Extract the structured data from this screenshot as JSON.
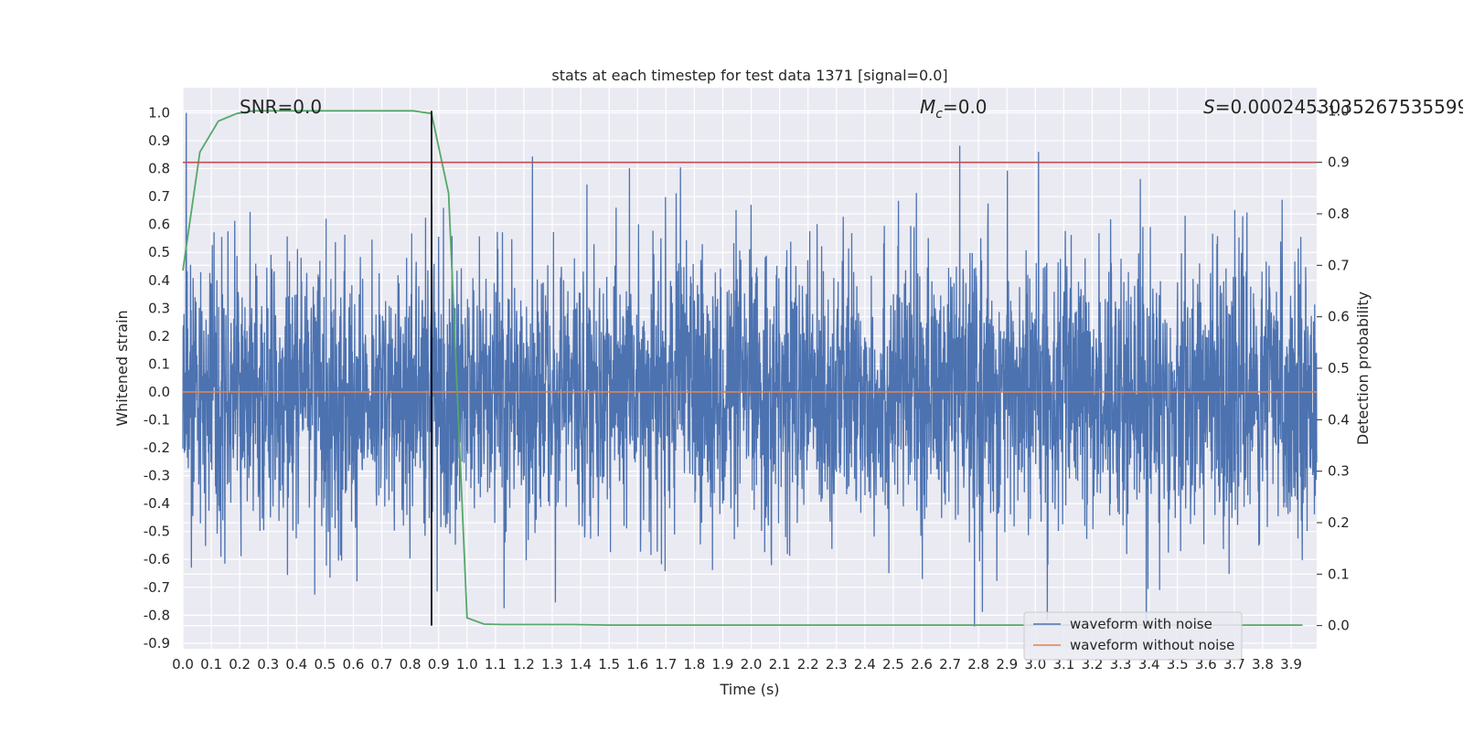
{
  "chart_data": {
    "type": "line",
    "title": "stats at each timestep for test data 1371 [signal=0.0]",
    "xlabel": "Time (s)",
    "ylabel": "Whitened strain",
    "y2label": "Detection probability",
    "xlim": [
      0.0,
      3.99
    ],
    "ylim": [
      -0.92,
      1.09
    ],
    "y2lim": [
      -0.045,
      1.045
    ],
    "x_ticks": [
      "0.0",
      "0.1",
      "0.2",
      "0.3",
      "0.4",
      "0.5",
      "0.6",
      "0.7",
      "0.8",
      "0.9",
      "1.0",
      "1.1",
      "1.2",
      "1.3",
      "1.4",
      "1.5",
      "1.6",
      "1.7",
      "1.8",
      "1.9",
      "2.0",
      "2.1",
      "2.2",
      "2.3",
      "2.4",
      "2.5",
      "2.6",
      "2.7",
      "2.8",
      "2.9",
      "3.0",
      "3.1",
      "3.2",
      "3.3",
      "3.4",
      "3.5",
      "3.6",
      "3.7",
      "3.8",
      "3.9"
    ],
    "y_ticks": [
      "1.0",
      "0.9",
      "0.8",
      "0.7",
      "0.6",
      "0.5",
      "0.4",
      "0.3",
      "0.2",
      "0.1",
      "0.0",
      "-0.1",
      "-0.2",
      "-0.3",
      "-0.4",
      "-0.5",
      "-0.6",
      "-0.7",
      "-0.8",
      "-0.9"
    ],
    "y2_ticks": [
      "1.0",
      "0.9",
      "0.8",
      "0.7",
      "0.6",
      "0.5",
      "0.4",
      "0.3",
      "0.2",
      "0.1",
      "0.0"
    ],
    "annotations": {
      "snr": "SNR=0.0",
      "mc_symbol": "M",
      "mc_sub": "c",
      "mc_value": "=0.0",
      "s_symbol": "S",
      "s_value": "=0.0002453035267535599"
    },
    "grid": true,
    "legend_position": "lower-right",
    "series": [
      {
        "name": "waveform with noise",
        "color": "#4c72b0",
        "axis": "left",
        "description_points": 4000
      },
      {
        "name": "waveform without noise",
        "color": "#dd8452",
        "axis": "left",
        "x": [
          0.0,
          3.99
        ],
        "y": [
          0.0,
          0.0
        ]
      },
      {
        "color": "#55a868",
        "axis": "right",
        "x": [
          0.0,
          0.06,
          0.125,
          0.19,
          0.25,
          0.31,
          0.375,
          0.44,
          0.5,
          0.56,
          0.625,
          0.69,
          0.75,
          0.81,
          0.875,
          0.935,
          1.0,
          1.06,
          1.125,
          1.25,
          1.375,
          1.5,
          1.75,
          2.0,
          2.5,
          3.0,
          3.5,
          3.94
        ],
        "y": [
          0.69,
          0.92,
          0.98,
          0.995,
          1.0,
          1.0,
          1.0,
          1.0,
          1.0,
          1.0,
          1.0,
          1.0,
          1.0,
          1.0,
          0.995,
          0.84,
          0.015,
          0.003,
          0.002,
          0.002,
          0.002,
          0.001,
          0.001,
          0.001,
          0.001,
          0.001,
          0.001,
          0.001
        ]
      },
      {
        "color": "#c44e52",
        "axis": "right",
        "x": [
          0.0,
          3.99
        ],
        "y": [
          0.9,
          0.9
        ]
      },
      {
        "color": "#000000",
        "axis": "right",
        "type": "vline",
        "x": 0.875,
        "y": [
          0.0,
          1.0
        ]
      }
    ]
  }
}
